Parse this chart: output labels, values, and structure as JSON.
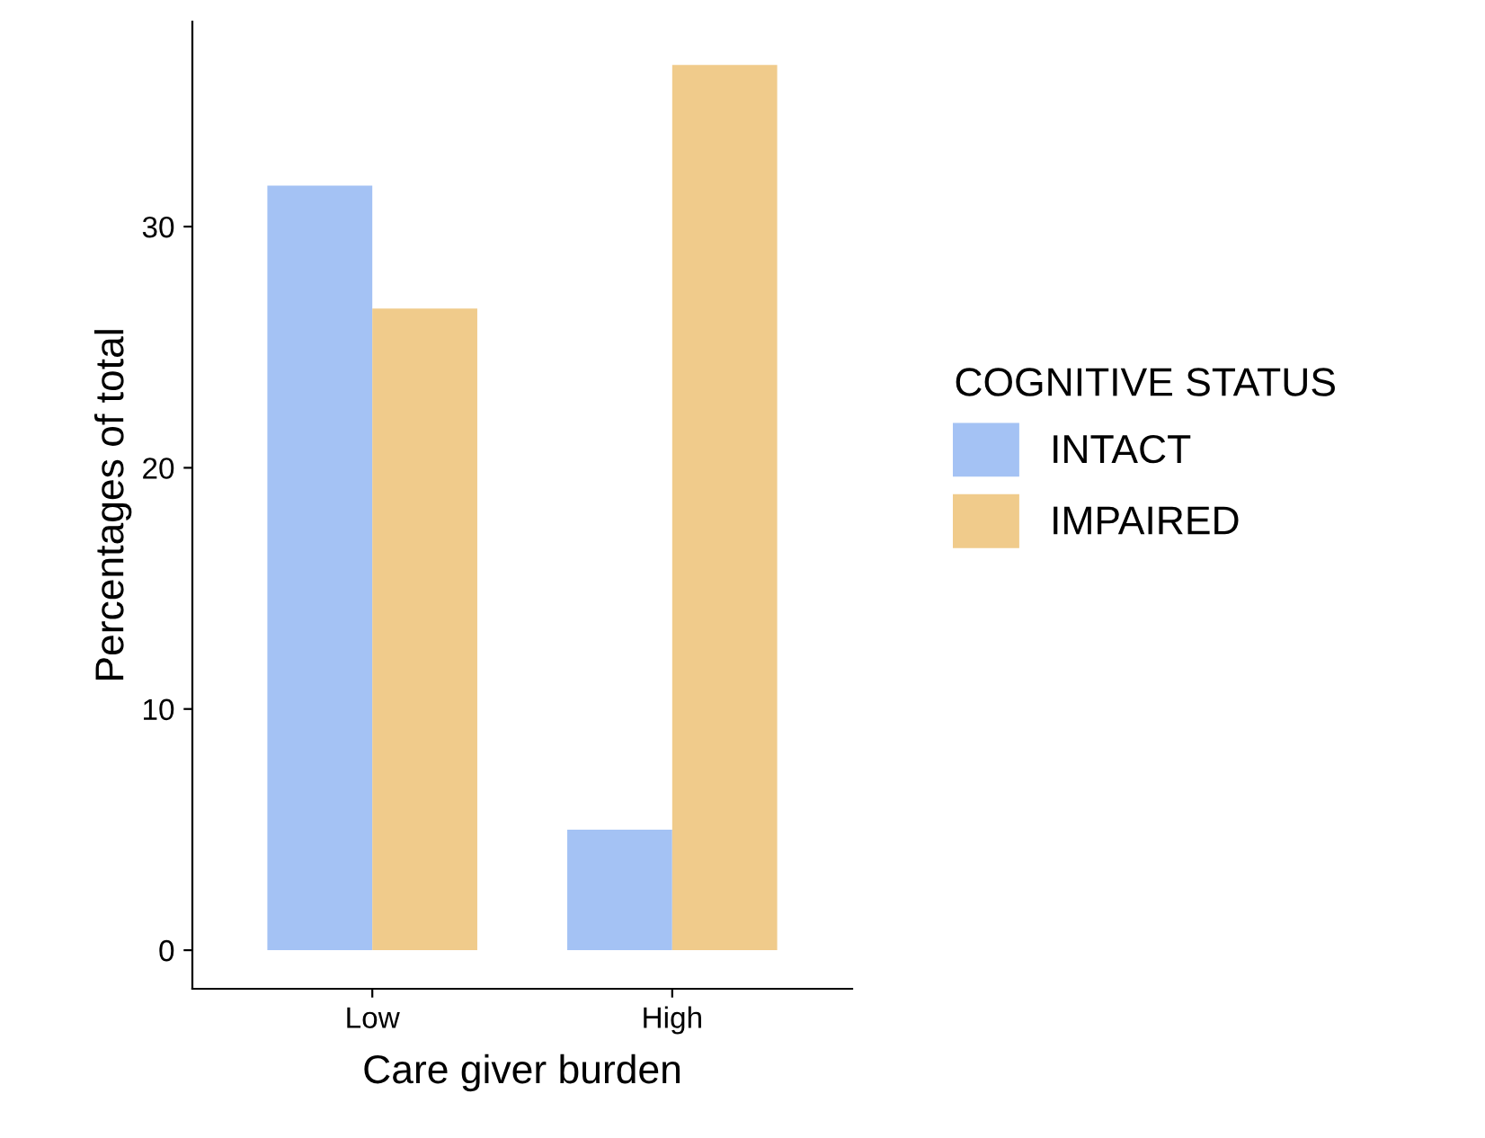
{
  "chart_data": {
    "type": "bar",
    "xlabel": "Care giver burden",
    "ylabel": "Percentages of total",
    "legend_title": "COGNITIVE STATUS",
    "categories": [
      "Low",
      "High"
    ],
    "series": [
      {
        "name": "INTACT",
        "color": "#a4c2f4",
        "values": [
          31.7,
          5.0
        ]
      },
      {
        "name": "IMPAIRED",
        "color": "#f0cb8b",
        "values": [
          26.6,
          36.7
        ]
      }
    ],
    "ylim": [
      -1.6,
      38.5
    ],
    "yticks": [
      0,
      10,
      20,
      30
    ],
    "grid": false,
    "legend": "right"
  }
}
